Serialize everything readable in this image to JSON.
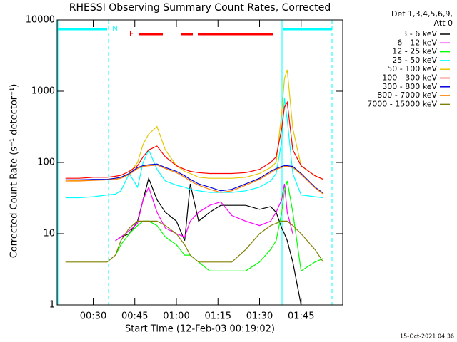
{
  "chart_data": {
    "type": "line",
    "title": "RHESSI Observing Summary Count Rates, Corrected",
    "x_label": "Start Time (12-Feb-03 00:19:02)",
    "y_label": "Corrected Count Rate (s⁻¹ detector⁻¹)",
    "legend_title": [
      "Det 1,3,4,5,6,9,",
      "Att 0"
    ],
    "legend": "right",
    "log_y": true,
    "annotations": [
      "N",
      "F"
    ],
    "footer": "15-Oct-2021 04:36",
    "xlim": [
      "00:17",
      "02:00"
    ],
    "xticks": [
      "00:30",
      "00:45",
      "01:00",
      "01:15",
      "01:30",
      "01:45"
    ],
    "ylim": [
      1,
      10000
    ],
    "yticks": [
      1,
      10,
      100,
      1000,
      10000
    ],
    "x": [
      "00:20",
      "00:25",
      "00:30",
      "00:35",
      "00:38",
      "00:40",
      "00:43",
      "00:46",
      "00:48",
      "00:50",
      "00:53",
      "00:56",
      "01:00",
      "01:03",
      "01:05",
      "01:08",
      "01:12",
      "01:16",
      "01:20",
      "01:25",
      "01:30",
      "01:34",
      "01:36",
      "01:38",
      "01:39",
      "01:40",
      "01:42",
      "01:45",
      "01:50",
      "01:53"
    ],
    "series": [
      {
        "name": "3 - 6 keV",
        "color": "#000000",
        "values": [
          null,
          null,
          null,
          null,
          8,
          9,
          10,
          15,
          30,
          60,
          30,
          20,
          15,
          8,
          50,
          15,
          20,
          25,
          25,
          25,
          22,
          24,
          20,
          12,
          10,
          8,
          4,
          1,
          null,
          null
        ]
      },
      {
        "name": "6 - 12 keV",
        "color": "#ff00ff",
        "values": [
          null,
          null,
          null,
          null,
          8,
          9,
          11,
          14,
          30,
          45,
          20,
          12,
          10,
          9,
          15,
          20,
          25,
          28,
          18,
          15,
          13,
          15,
          20,
          30,
          50,
          20,
          10,
          null,
          null,
          null
        ]
      },
      {
        "name": "12 - 25 keV",
        "color": "#00ff00",
        "values": [
          null,
          null,
          null,
          null,
          5,
          7,
          10,
          13,
          15,
          15,
          13,
          9,
          7,
          5,
          5,
          4,
          3,
          3,
          3,
          3,
          4,
          6,
          8,
          20,
          40,
          55,
          20,
          3,
          4,
          4.5
        ]
      },
      {
        "name": "25 - 50 keV",
        "color": "#00ffff",
        "values": [
          32,
          32,
          33,
          35,
          36,
          40,
          70,
          45,
          100,
          150,
          80,
          55,
          48,
          45,
          42,
          40,
          38,
          38,
          38,
          40,
          45,
          55,
          70,
          200,
          800,
          400,
          70,
          35,
          33,
          32
        ]
      },
      {
        "name": "50 - 100 keV",
        "color": "#e6c800",
        "values": [
          55,
          56,
          57,
          58,
          60,
          62,
          70,
          100,
          180,
          250,
          320,
          150,
          90,
          75,
          70,
          62,
          60,
          60,
          60,
          62,
          70,
          85,
          100,
          500,
          1500,
          2000,
          300,
          90,
          65,
          58
        ]
      },
      {
        "name": "100 - 300 keV",
        "color": "#ff0000",
        "values": [
          60,
          60,
          62,
          62,
          64,
          66,
          75,
          90,
          120,
          150,
          170,
          120,
          90,
          80,
          75,
          72,
          70,
          70,
          70,
          72,
          80,
          100,
          120,
          300,
          600,
          700,
          150,
          90,
          65,
          58
        ]
      },
      {
        "name": "300 - 800 keV",
        "color": "#0000dd",
        "values": [
          57,
          57,
          58,
          58,
          60,
          62,
          70,
          85,
          90,
          93,
          95,
          85,
          75,
          65,
          58,
          50,
          45,
          40,
          42,
          50,
          60,
          75,
          82,
          88,
          90,
          90,
          88,
          70,
          45,
          37
        ]
      },
      {
        "name": "800 - 7000 keV",
        "color": "#ff8000",
        "values": [
          55,
          55,
          56,
          57,
          58,
          60,
          68,
          82,
          88,
          90,
          92,
          82,
          72,
          62,
          55,
          48,
          42,
          38,
          40,
          48,
          58,
          72,
          80,
          85,
          88,
          88,
          85,
          68,
          44,
          36
        ]
      },
      {
        "name": "7000 - 15000 keV",
        "color": "#808000",
        "values": [
          4,
          4,
          4,
          4,
          5,
          8,
          12,
          15,
          15,
          15,
          15,
          13,
          10,
          7,
          5,
          4,
          4,
          4,
          4,
          6,
          10,
          13,
          14,
          15,
          15,
          15,
          13,
          10,
          6,
          4
        ]
      }
    ]
  }
}
